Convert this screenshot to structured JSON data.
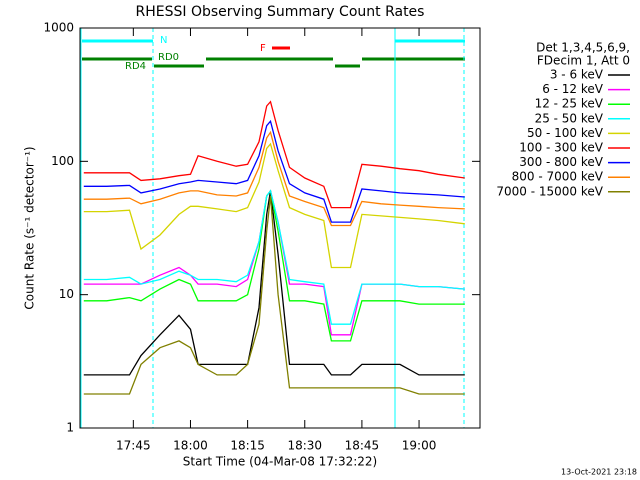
{
  "chart_data": {
    "type": "line",
    "title": "RHESSI Observing Summary Count Rates",
    "x_label": "Start Time (04-Mar-08 17:32:22)",
    "y_label": "Count Rate (s⁻¹ detector⁻¹)",
    "legend_header": [
      "Det 1,3,4,5,6,9,",
      "FDecim 1, Att 0"
    ],
    "footer": "13-Oct-2021 23:18",
    "annotations": [
      "N",
      "RD0",
      "RD4",
      "F"
    ],
    "y_scale": "log",
    "xlim": [
      "17:31",
      "19:16"
    ],
    "xticks": [
      "17:45",
      "18:00",
      "18:15",
      "18:30",
      "18:45",
      "19:00"
    ],
    "ylim": [
      1,
      1000
    ],
    "yticks": [
      1,
      10,
      100,
      1000
    ],
    "x": [
      "17:32",
      "17:38",
      "17:44",
      "17:47",
      "17:52",
      "17:57",
      "18:00",
      "18:02",
      "18:07",
      "18:12",
      "18:15",
      "18:18",
      "18:20",
      "18:21",
      "18:23",
      "18:26",
      "18:30",
      "18:35",
      "18:37",
      "18:42",
      "18:45",
      "18:50",
      "18:55",
      "19:00",
      "19:05",
      "19:12"
    ],
    "series": [
      {
        "name": "3 - 6 keV",
        "color": "#000000",
        "values": [
          2.5,
          2.5,
          2.5,
          3.5,
          5,
          7,
          5.5,
          3,
          3,
          3,
          3,
          8,
          40,
          60,
          20,
          3,
          3,
          3,
          2.5,
          2.5,
          3,
          3,
          3,
          2.5,
          2.5,
          2.5
        ]
      },
      {
        "name": "6 - 12 keV",
        "color": "#ff00ff",
        "values": [
          12,
          12,
          12,
          12,
          14,
          16,
          14,
          12,
          12,
          11.5,
          13,
          25,
          55,
          60,
          35,
          12,
          12,
          11.5,
          5,
          5,
          12,
          12,
          12,
          11.5,
          11.5,
          11
        ]
      },
      {
        "name": "12 - 25 keV",
        "color": "#00ff00",
        "values": [
          9,
          9,
          9.5,
          9,
          11,
          13,
          12,
          9,
          9,
          9,
          10,
          22,
          55,
          60,
          30,
          9,
          9,
          8.5,
          4.5,
          4.5,
          9,
          9,
          9,
          8.5,
          8.5,
          8.5
        ]
      },
      {
        "name": "25 - 50 keV",
        "color": "#00ffff",
        "values": [
          13,
          13,
          13.5,
          12,
          13,
          15,
          14,
          13,
          13,
          12.5,
          14,
          25,
          55,
          60,
          35,
          13,
          12.5,
          12,
          6,
          6,
          12,
          12,
          12,
          11.5,
          11.5,
          11
        ]
      },
      {
        "name": "50 - 100 keV",
        "color": "#d4d400",
        "values": [
          42,
          42,
          43,
          22,
          28,
          40,
          46,
          46,
          44,
          42,
          45,
          70,
          125,
          135,
          85,
          45,
          40,
          36,
          16,
          16,
          40,
          39,
          38,
          37,
          36,
          34
        ]
      },
      {
        "name": "100 - 300 keV",
        "color": "#ff0000",
        "values": [
          82,
          82,
          82,
          72,
          74,
          78,
          80,
          110,
          100,
          92,
          95,
          140,
          260,
          280,
          170,
          90,
          75,
          65,
          45,
          45,
          95,
          92,
          88,
          85,
          80,
          75
        ]
      },
      {
        "name": "300 - 800 keV",
        "color": "#0000ff",
        "values": [
          65,
          65,
          66,
          58,
          62,
          68,
          70,
          72,
          70,
          68,
          72,
          110,
          185,
          200,
          120,
          68,
          58,
          52,
          35,
          35,
          62,
          60,
          58,
          57,
          56,
          54
        ]
      },
      {
        "name": "800 - 7000 keV",
        "color": "#ff8000",
        "values": [
          52,
          52,
          53,
          48,
          52,
          58,
          60,
          60,
          56,
          55,
          58,
          90,
          150,
          165,
          100,
          55,
          50,
          45,
          33,
          33,
          50,
          48,
          47,
          46,
          45,
          44
        ]
      },
      {
        "name": "7000 - 15000 keV",
        "color": "#808000",
        "values": [
          1.8,
          1.8,
          1.8,
          3,
          4,
          4.5,
          4,
          3,
          2.5,
          2.5,
          3,
          6,
          30,
          55,
          10,
          2,
          2,
          2,
          2,
          2,
          2,
          2,
          2,
          1.8,
          1.8,
          1.8
        ]
      }
    ]
  }
}
